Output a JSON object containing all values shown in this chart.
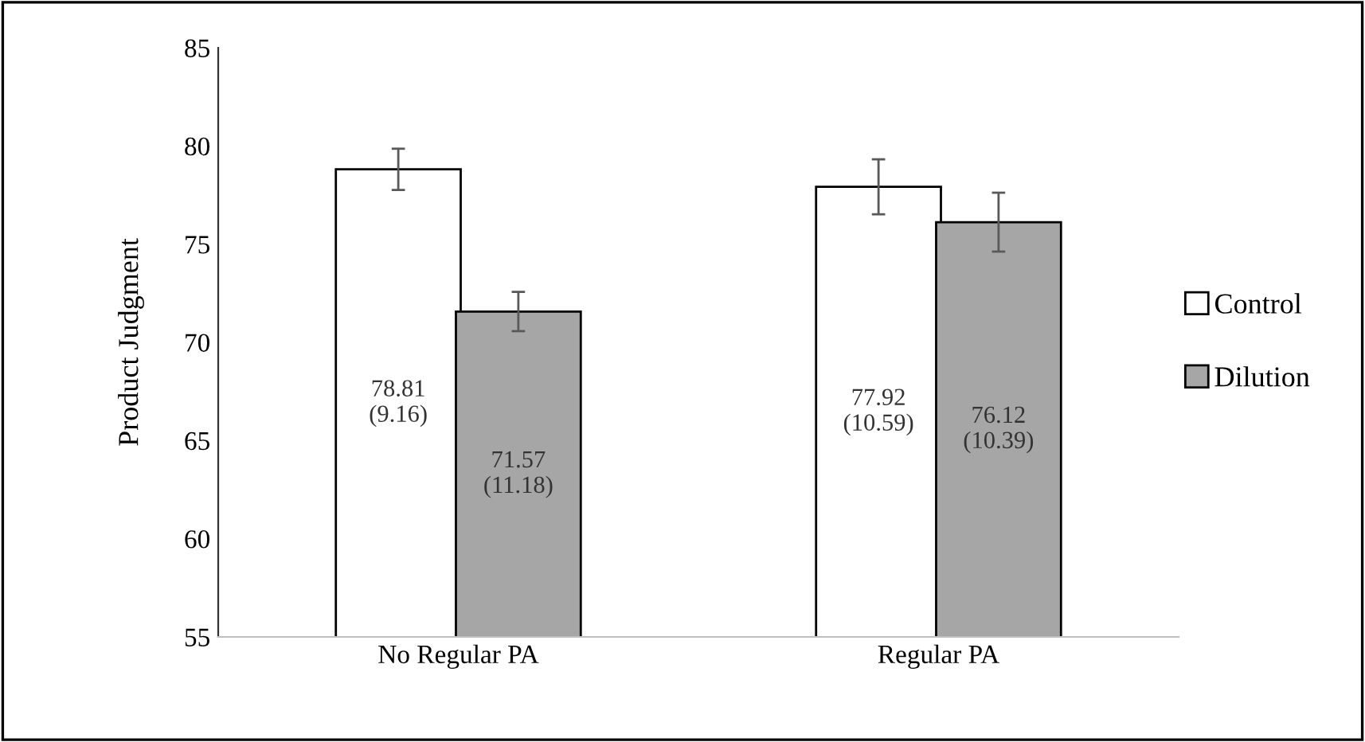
{
  "chart_data": {
    "type": "bar",
    "ylabel": "Product Judgment",
    "categories": [
      "No Regular PA",
      "Regular PA"
    ],
    "series": [
      {
        "name": "Control",
        "color": "#ffffff",
        "values": [
          78.81,
          77.92
        ],
        "errors": [
          1.05,
          1.4
        ],
        "value_labels": [
          "78.81\n(9.16)",
          "77.92\n(10.59)"
        ]
      },
      {
        "name": "Dilution",
        "color": "#a6a6a6",
        "values": [
          71.57,
          76.12
        ],
        "errors": [
          1.0,
          1.5
        ],
        "value_labels": [
          "71.57\n(11.18)",
          "76.12\n(10.39)"
        ]
      }
    ],
    "ylim": [
      55,
      85
    ],
    "yticks": [
      55,
      60,
      65,
      70,
      75,
      80,
      85
    ],
    "grid": false,
    "legend": "right"
  }
}
